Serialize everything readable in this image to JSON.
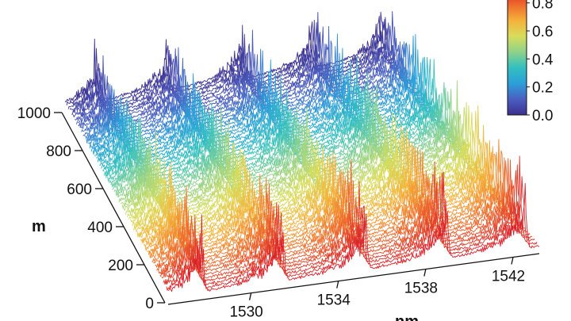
{
  "chart_data": {
    "type": "waterfall-3d-line",
    "x_axis": {
      "label": "nm",
      "ticks": [
        1530,
        1534,
        1538,
        1542
      ],
      "range": [
        1526.2,
        1543.2
      ]
    },
    "y_axis": {
      "label": "m",
      "ticks": [
        0,
        200,
        400,
        600,
        800,
        1000
      ],
      "range": [
        0,
        1000
      ]
    },
    "colorbar": {
      "ticks": [
        "0.0",
        "0.2",
        "0.4",
        "0.6",
        "0.8"
      ],
      "range": [
        0,
        0.9
      ],
      "colormap": [
        "#3b2f8f",
        "#4a5fc1",
        "#2b9fd8",
        "#32c0c0",
        "#8fd28a",
        "#d8dd5a",
        "#f5b13a",
        "#ee6a2c",
        "#d9202a"
      ]
    },
    "series": {
      "trace_count": 64,
      "peak_wavelengths_nm": [
        1527.7,
        1531.4,
        1535.2,
        1538.9,
        1542.5
      ],
      "peak_height_near_0m": 0.8,
      "peak_height_near_1000m": 0.6,
      "color_mapped_to": "distance"
    }
  }
}
